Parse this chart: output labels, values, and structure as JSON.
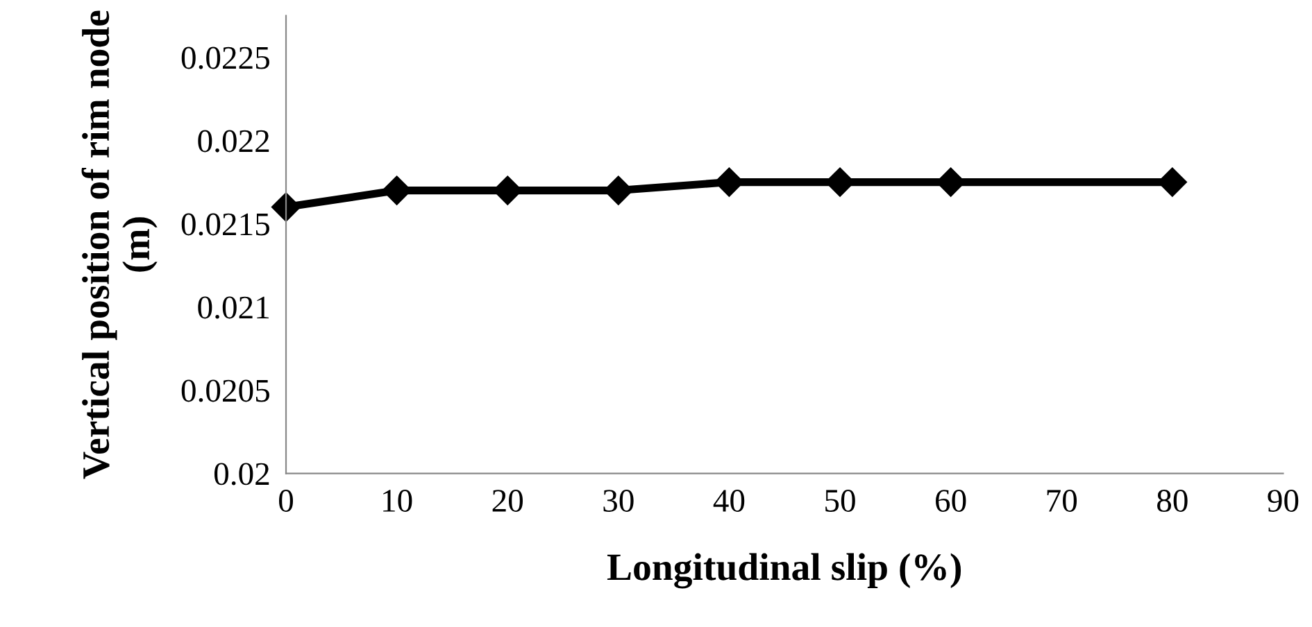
{
  "chart_data": {
    "type": "line",
    "xlabel": "Longitudinal slip (%)",
    "ylabel": "Vertical position of rim node (m)",
    "x": [
      0,
      10,
      20,
      30,
      40,
      50,
      60,
      80
    ],
    "series": [
      {
        "color": "#000000",
        "values": [
          0.0216,
          0.0217,
          0.0217,
          0.0217,
          0.02175,
          0.02175,
          0.02175,
          0.02175
        ]
      }
    ],
    "xlim": [
      0,
      90
    ],
    "xticks": [
      0,
      10,
      20,
      30,
      40,
      50,
      60,
      70,
      80,
      90
    ],
    "ylim": [
      0.02,
      0.02275
    ],
    "yticks": [
      0.02,
      0.0205,
      0.021,
      0.0215,
      0.022,
      0.0225
    ],
    "grid": false,
    "legend": false,
    "marker": "diamond",
    "line_style": "solid"
  }
}
